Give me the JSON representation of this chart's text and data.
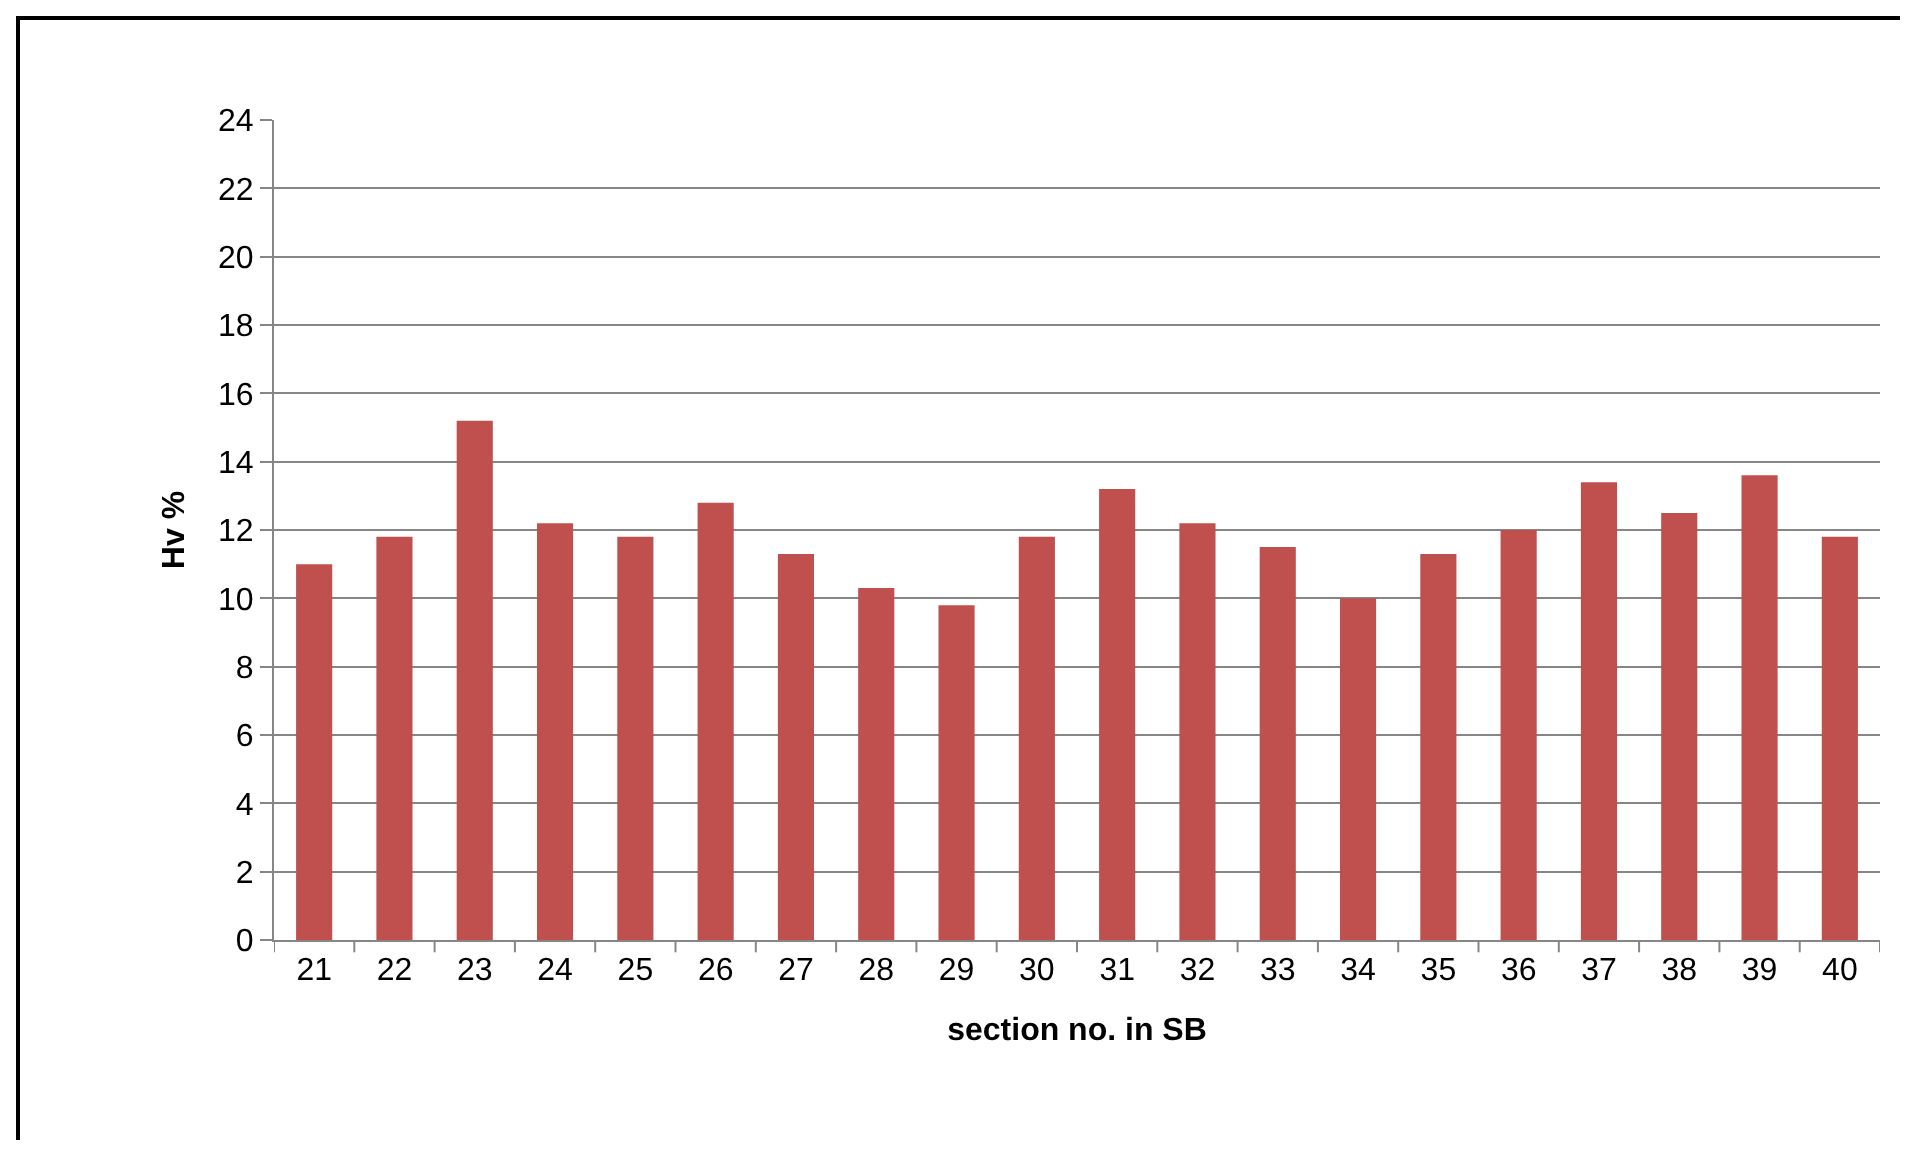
{
  "chart_data": {
    "type": "bar",
    "xlabel": "section no. in SB",
    "ylabel": "Hv %",
    "categories": [
      "21",
      "22",
      "23",
      "24",
      "25",
      "26",
      "27",
      "28",
      "29",
      "30",
      "31",
      "32",
      "33",
      "34",
      "35",
      "36",
      "37",
      "38",
      "39",
      "40"
    ],
    "values": [
      11,
      11.8,
      15.2,
      12.2,
      11.8,
      12.8,
      11.3,
      10.3,
      9.8,
      11.8,
      13.2,
      12.2,
      11.5,
      10,
      11.3,
      12,
      13.4,
      12.5,
      13.6,
      11.8
    ],
    "color": "#c0504d",
    "ylim": [
      0,
      24
    ],
    "yticks": [
      0,
      2,
      4,
      6,
      8,
      10,
      12,
      14,
      16,
      18,
      20,
      22,
      24
    ],
    "grid": "y"
  }
}
